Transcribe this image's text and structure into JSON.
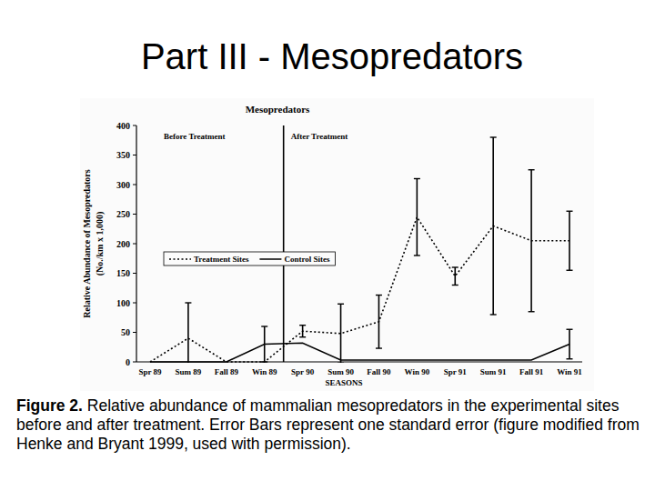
{
  "slide": {
    "title": "Part III - Mesopredators",
    "caption_label": "Figure 2.",
    "caption": "Relative abundance of mammalian mesopredators in the experimental sites before and after treatment. Error Bars represent one standard error (figure modified from Henke and Bryant 1999, used with permission)."
  },
  "chart_data": {
    "type": "line",
    "title": "Mesopredators",
    "xlabel": "SEASONS",
    "ylabel": [
      "Relative Abundance of Mesopredators",
      "(No./km x 1,000)"
    ],
    "categories": [
      "Spr 89",
      "Sum 89",
      "Fall 89",
      "Win 89",
      "Spr 90",
      "Sum 90",
      "Fall 90",
      "Win 90",
      "Spr 91",
      "Sum 91",
      "Fall 91",
      "Win 91"
    ],
    "series": [
      {
        "name": "Treatment Sites",
        "color": "#000000",
        "line_style": "dotted",
        "values": [
          0,
          40,
          0,
          0,
          52,
          48,
          68,
          245,
          145,
          230,
          205,
          205
        ],
        "errors": [
          null,
          60,
          null,
          null,
          10,
          50,
          45,
          65,
          15,
          150,
          120,
          50
        ]
      },
      {
        "name": "Control Sites",
        "color": "#000000",
        "line_style": "solid",
        "values": [
          0,
          0,
          0,
          30,
          32,
          3,
          3,
          3,
          3,
          3,
          3,
          30
        ],
        "errors": [
          null,
          null,
          null,
          30,
          null,
          null,
          null,
          null,
          null,
          null,
          null,
          25
        ]
      }
    ],
    "divider": {
      "before": "Before Treatment",
      "after": "After Treatment",
      "at_category": "Spr 90"
    },
    "ylim": [
      0,
      400
    ],
    "yticks": [
      0,
      50,
      100,
      150,
      200,
      250,
      300,
      350,
      400
    ],
    "grid": false,
    "legend": "left"
  }
}
